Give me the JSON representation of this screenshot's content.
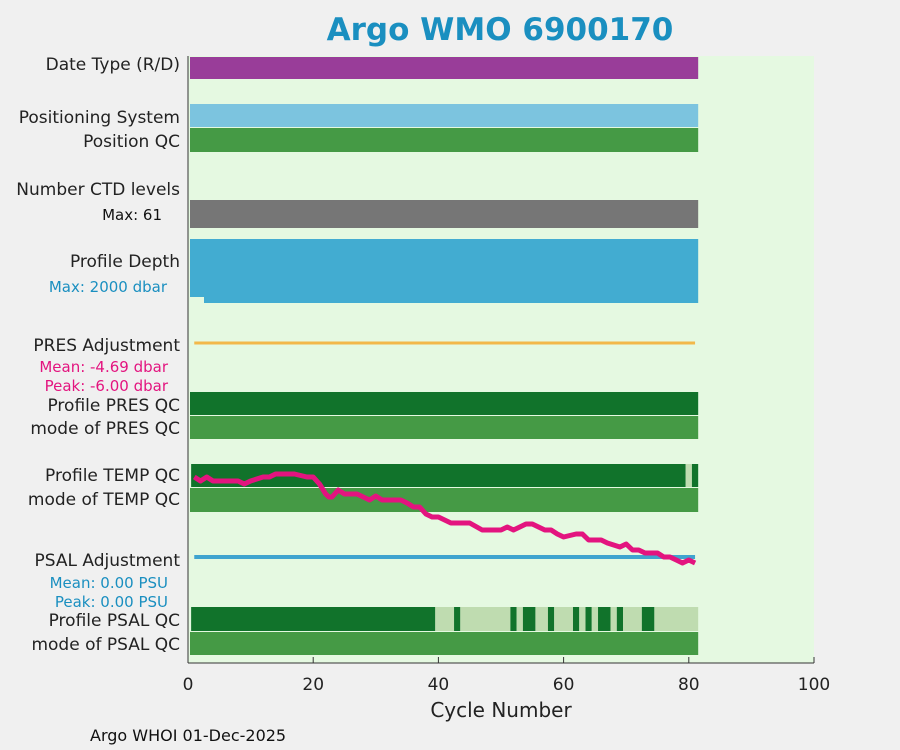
{
  "title": "Argo WMO 6900170",
  "footer": "Argo WHOI 01-Dec-2025",
  "chart_data": {
    "type": "bar",
    "title": "Argo WMO 6900170",
    "xlabel": "Cycle Number",
    "xlim": [
      0,
      100
    ],
    "xticks": [
      0,
      20,
      40,
      60,
      80,
      100
    ],
    "last_cycle": 81.5,
    "colors": {
      "plot_bg": "#e5f9e1",
      "date_type": "#993d99",
      "positioning": "#7cc4df",
      "good_qc": "#459a45",
      "profile_good": "#11732b",
      "profile_light": "#bfdcb0",
      "ctd_levels": "#767676",
      "profile_depth": "#42acd1",
      "pres_adj": "#f2b84a",
      "temp_line": "#e3147f",
      "psal_adj": "#3fa4cf",
      "mean_peak_pink": "#e3147f",
      "mean_peak_blue": "#1a8fc0"
    },
    "rows": [
      {
        "label": "Date Type (R/D)"
      },
      {
        "label": "Positioning System"
      },
      {
        "label": "Position QC"
      },
      {
        "label": "Number CTD levels"
      },
      {
        "label": "Profile Depth"
      },
      {
        "label": "PRES Adjustment"
      },
      {
        "label": "Profile PRES QC"
      },
      {
        "label": "mode of PRES QC"
      },
      {
        "label": "Profile TEMP QC"
      },
      {
        "label": "mode of TEMP QC"
      },
      {
        "label": "PSAL Adjustment"
      },
      {
        "label": "Profile PSAL QC"
      },
      {
        "label": "mode of PSAL QC"
      }
    ],
    "annotations": {
      "ctd_max": "Max: 61",
      "depth_max": "Max: 2000 dbar",
      "pres_mean": "Mean: -4.69 dbar",
      "pres_peak": "Peak: -6.00 dbar",
      "psal_mean": "Mean: 0.00 PSU",
      "psal_peak": "Peak: 0.00 PSU"
    },
    "temp_qc_segments": [
      {
        "start": 0.5,
        "end": 79.5,
        "class": "good"
      },
      {
        "start": 79.5,
        "end": 80.5,
        "class": "light"
      },
      {
        "start": 80.5,
        "end": 81.5,
        "class": "good"
      }
    ],
    "psal_qc_segments": [
      {
        "start": 0.5,
        "end": 39.5,
        "class": "good"
      },
      {
        "start": 39.5,
        "end": 42.5,
        "class": "light"
      },
      {
        "start": 42.5,
        "end": 43.5,
        "class": "good"
      },
      {
        "start": 43.5,
        "end": 51.5,
        "class": "light"
      },
      {
        "start": 51.5,
        "end": 52.5,
        "class": "good"
      },
      {
        "start": 52.5,
        "end": 53.5,
        "class": "light"
      },
      {
        "start": 53.5,
        "end": 55.5,
        "class": "good"
      },
      {
        "start": 55.5,
        "end": 57.5,
        "class": "light"
      },
      {
        "start": 57.5,
        "end": 58.5,
        "class": "good"
      },
      {
        "start": 58.5,
        "end": 61.5,
        "class": "light"
      },
      {
        "start": 61.5,
        "end": 62.5,
        "class": "good"
      },
      {
        "start": 62.5,
        "end": 63.5,
        "class": "light"
      },
      {
        "start": 63.5,
        "end": 64.5,
        "class": "good"
      },
      {
        "start": 64.5,
        "end": 65.5,
        "class": "light"
      },
      {
        "start": 65.5,
        "end": 67.5,
        "class": "good"
      },
      {
        "start": 67.5,
        "end": 68.5,
        "class": "light"
      },
      {
        "start": 68.5,
        "end": 69.5,
        "class": "good"
      },
      {
        "start": 69.5,
        "end": 72.5,
        "class": "light"
      },
      {
        "start": 72.5,
        "end": 74.5,
        "class": "good"
      },
      {
        "start": 74.5,
        "end": 81.5,
        "class": "light"
      }
    ],
    "temp_adjustment_curve": {
      "x": [
        1,
        2,
        3,
        4,
        6,
        8,
        9,
        10,
        12,
        13,
        14,
        17,
        19,
        20,
        21,
        22,
        22.5,
        23,
        24,
        25,
        27,
        28,
        29,
        30,
        31,
        32,
        34,
        35,
        36,
        37,
        38,
        39,
        40,
        42,
        43,
        45,
        47,
        48,
        50,
        51,
        52,
        53,
        54,
        55,
        57,
        58,
        59,
        60,
        62,
        63,
        64,
        65,
        66,
        67,
        69,
        70,
        71,
        72,
        73,
        74,
        75,
        76,
        77,
        78,
        79,
        80,
        81
      ],
      "y": [
        0.0,
        0.4,
        0.0,
        0.4,
        0.4,
        0.4,
        0.7,
        0.4,
        0.0,
        0.0,
        -0.3,
        -0.3,
        0.0,
        0.0,
        0.7,
        1.7,
        2.0,
        2.0,
        1.3,
        1.7,
        1.7,
        2.0,
        2.3,
        1.9,
        2.3,
        2.3,
        2.3,
        2.6,
        3.0,
        3.0,
        3.7,
        4.0,
        4.0,
        4.6,
        4.6,
        4.6,
        5.3,
        5.3,
        5.3,
        5.0,
        5.3,
        5.0,
        4.7,
        4.7,
        5.3,
        5.3,
        5.7,
        6.0,
        5.7,
        5.7,
        6.3,
        6.3,
        6.3,
        6.6,
        7.0,
        6.7,
        7.3,
        7.3,
        7.6,
        7.6,
        7.6,
        8.0,
        8.0,
        8.3,
        8.6,
        8.3,
        8.6
      ]
    }
  }
}
